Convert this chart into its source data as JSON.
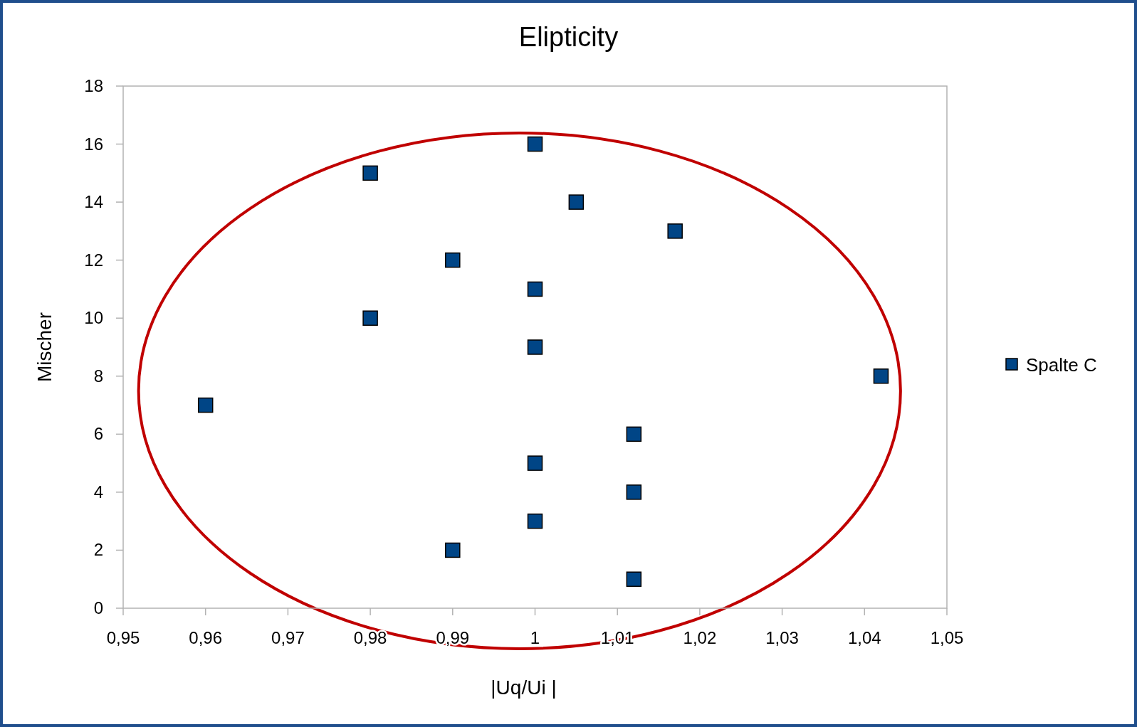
{
  "chart_data": {
    "type": "scatter",
    "title": "Elipticity",
    "xlabel": "|Uq/Ui |",
    "ylabel": "Mischer",
    "x": [
      1.0,
      0.98,
      1.005,
      1.017,
      0.99,
      1.0,
      0.98,
      1.0,
      1.042,
      0.96,
      1.012,
      1.0,
      1.012,
      1.0,
      0.99,
      1.012
    ],
    "series": [
      {
        "name": "Spalte C",
        "color": "#004586",
        "values": [
          16,
          15,
          14,
          13,
          12,
          11,
          10,
          9,
          8,
          7,
          6,
          5,
          4,
          3,
          2,
          1
        ]
      }
    ],
    "xlim": [
      0.95,
      1.05
    ],
    "xticks": [
      {
        "value": 0.95,
        "label": "0,95"
      },
      {
        "value": 0.96,
        "label": "0,96"
      },
      {
        "value": 0.97,
        "label": "0,97"
      },
      {
        "value": 0.98,
        "label": "0,98"
      },
      {
        "value": 0.99,
        "label": "0,99"
      },
      1,
      {
        "value": 1.01,
        "label": "1,01"
      },
      {
        "value": 1.02,
        "label": "1,02"
      },
      {
        "value": 1.03,
        "label": "1,03"
      },
      {
        "value": 1.04,
        "label": "1,04"
      },
      {
        "value": 1.05,
        "label": "1,05"
      }
    ],
    "ylim": [
      0,
      18
    ],
    "yticks": [
      0,
      2,
      4,
      6,
      8,
      10,
      12,
      14,
      16,
      18
    ],
    "grid": false,
    "legend": "right",
    "marker": "square"
  }
}
